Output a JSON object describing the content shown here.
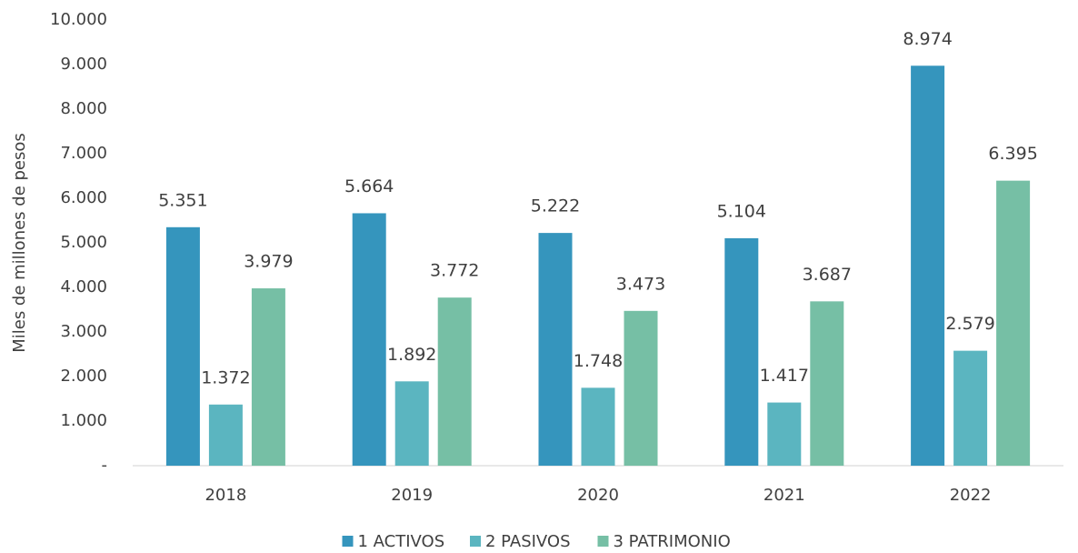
{
  "chart_data": {
    "type": "bar",
    "y_label": "Miles de millones de pesos",
    "categories": [
      "2018",
      "2019",
      "2020",
      "2021",
      "2022"
    ],
    "series": [
      {
        "name": "1 ACTIVOS",
        "color": "#3595bd",
        "values": [
          5351,
          5664,
          5222,
          5104,
          8974
        ],
        "value_labels": [
          "5.351",
          "5.664",
          "5.222",
          "5.104",
          "8.974"
        ]
      },
      {
        "name": "2 PASIVOS",
        "color": "#5bb5c0",
        "values": [
          1372,
          1892,
          1748,
          1417,
          2579
        ],
        "value_labels": [
          "1.372",
          "1.892",
          "1.748",
          "1.417",
          "2.579"
        ]
      },
      {
        "name": "3 PATRIMONIO",
        "color": "#76bfa5",
        "values": [
          3979,
          3772,
          3473,
          3687,
          6395
        ],
        "value_labels": [
          "3.979",
          "3.772",
          "3.473",
          "3.687",
          "6.395"
        ]
      }
    ],
    "ylim": [
      0,
      10000
    ],
    "yticks": [
      {
        "value": 0,
        "label": "-"
      },
      {
        "value": 1000,
        "label": "1.000"
      },
      {
        "value": 2000,
        "label": "2.000"
      },
      {
        "value": 3000,
        "label": "3.000"
      },
      {
        "value": 4000,
        "label": "4.000"
      },
      {
        "value": 5000,
        "label": "5.000"
      },
      {
        "value": 6000,
        "label": "6.000"
      },
      {
        "value": 7000,
        "label": "7.000"
      },
      {
        "value": 8000,
        "label": "8.000"
      },
      {
        "value": 9000,
        "label": "9.000"
      },
      {
        "value": 10000,
        "label": "10.000"
      }
    ],
    "legend": "bottom"
  }
}
